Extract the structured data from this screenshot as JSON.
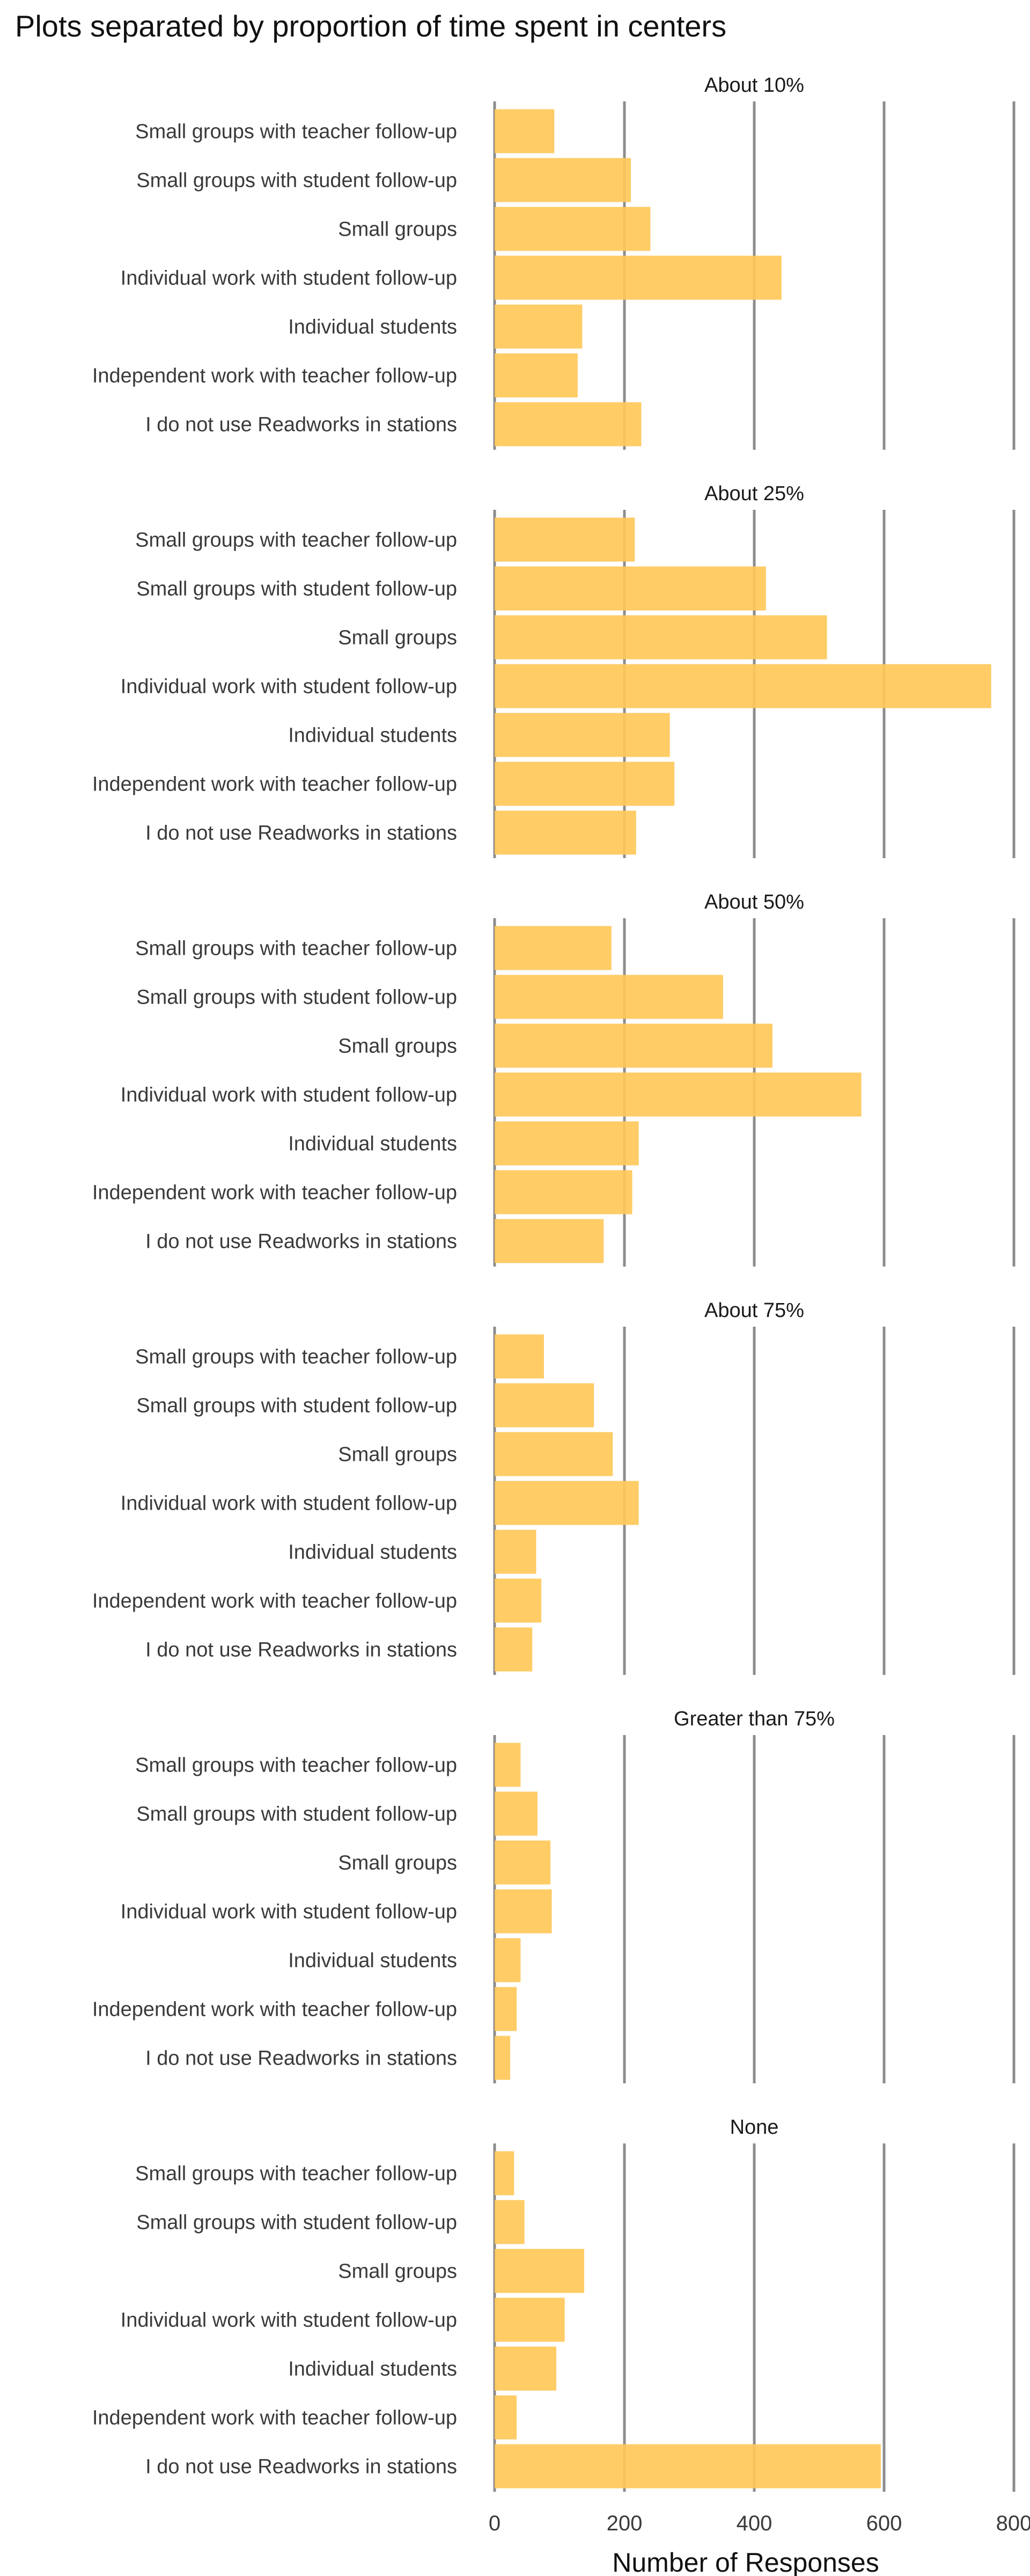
{
  "chart_data": {
    "type": "bar",
    "orientation": "horizontal",
    "title": "Plots separated by proportion of time spent in centers",
    "xlabel": "Number of Responses",
    "ylabel": "",
    "xlim": [
      0,
      800
    ],
    "x_ticks": [
      0,
      200,
      400,
      600,
      800
    ],
    "grid": "vertical",
    "bar_color": "#FFC859",
    "grid_color": "#8C8C8C",
    "categories": [
      "Small groups with teacher follow-up",
      "Small groups with student follow-up",
      "Small groups",
      "Individual work with student follow-up",
      "Individual students",
      "Independent work with teacher follow-up",
      "I do not use Readworks in stations"
    ],
    "panels": [
      {
        "name": "About 10%",
        "values": [
          92,
          210,
          240,
          442,
          135,
          128,
          226
        ]
      },
      {
        "name": "About 25%",
        "values": [
          216,
          418,
          512,
          765,
          270,
          277,
          218
        ]
      },
      {
        "name": "About 50%",
        "values": [
          180,
          352,
          428,
          565,
          222,
          212,
          168
        ]
      },
      {
        "name": "About 75%",
        "values": [
          76,
          153,
          182,
          222,
          64,
          72,
          58
        ]
      },
      {
        "name": "Greater than 75%",
        "values": [
          40,
          66,
          86,
          88,
          40,
          34,
          24
        ]
      },
      {
        "name": "None",
        "values": [
          30,
          46,
          138,
          108,
          95,
          34,
          595
        ]
      }
    ]
  }
}
